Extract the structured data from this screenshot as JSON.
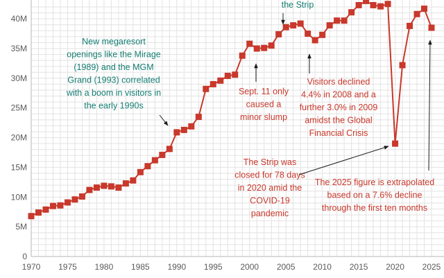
{
  "colors": {
    "series": "#c8382b",
    "annotation_teal": "#157e73",
    "annotation_red": "#c8382b",
    "grid": "#e2e2e2",
    "tick_text": "#5a5a5a"
  },
  "chart_data": {
    "type": "line",
    "title": "",
    "xlabel": "",
    "ylabel": "",
    "xlim": [
      1970,
      2025
    ],
    "ylim": [
      0,
      42
    ],
    "grid": "horizontal and vertical",
    "x_ticks": [
      1970,
      1975,
      1980,
      1985,
      1990,
      1995,
      2000,
      2005,
      2010,
      2015,
      2020,
      2025
    ],
    "x_tick_labels": [
      "1970",
      "1975",
      "1980",
      "1985",
      "1990",
      "1995",
      "2000",
      "2005",
      "2010",
      "2015",
      "2020",
      "2025"
    ],
    "y_ticks": [
      0,
      5,
      10,
      15,
      20,
      25,
      30,
      35,
      40
    ],
    "y_tick_labels": [
      "0",
      "5M",
      "10M",
      "15M",
      "20M",
      "25M",
      "30M",
      "35M",
      "40M"
    ],
    "series": [
      {
        "marker": "square",
        "x": [
          1970,
          1971,
          1972,
          1973,
          1974,
          1975,
          1976,
          1977,
          1978,
          1979,
          1980,
          1981,
          1982,
          1983,
          1984,
          1985,
          1986,
          1987,
          1988,
          1989,
          1990,
          1991,
          1992,
          1993,
          1994,
          1995,
          1996,
          1997,
          1998,
          1999,
          2000,
          2001,
          2002,
          2003,
          2004,
          2005,
          2006,
          2007,
          2008,
          2009,
          2010,
          2011,
          2012,
          2013,
          2014,
          2015,
          2016,
          2017,
          2018,
          2019,
          2020,
          2021,
          2022,
          2023,
          2024,
          2025
        ],
        "values": [
          6.8,
          7.4,
          7.9,
          8.5,
          8.6,
          9.1,
          9.6,
          10.1,
          11.2,
          11.6,
          11.9,
          11.8,
          11.6,
          12.3,
          12.8,
          14.2,
          15.2,
          16.2,
          17.1,
          18.1,
          20.9,
          21.3,
          21.9,
          23.5,
          28.2,
          29.0,
          29.6,
          30.4,
          30.6,
          33.8,
          35.8,
          35.0,
          35.1,
          35.5,
          37.4,
          38.6,
          38.9,
          39.2,
          37.5,
          36.4,
          37.3,
          38.9,
          39.7,
          39.7,
          41.1,
          42.3,
          43.0,
          42.3,
          42.1,
          42.5,
          19.0,
          32.2,
          38.8,
          40.8,
          41.7,
          38.5
        ]
      }
    ],
    "annotations": [
      {
        "id": "megaresort",
        "color": "teal",
        "lines": [
          "New megaresort",
          "openings like the Mirage",
          "(1989) and the MGM",
          "Grand (1993) correlated",
          "with a boom in visitors in",
          "the early 1990s"
        ]
      },
      {
        "id": "strip-top",
        "color": "teal",
        "lines": [
          "the Strip"
        ]
      },
      {
        "id": "sept11",
        "color": "red",
        "lines": [
          "Sept. 11 only",
          "caused a",
          "minor slump"
        ]
      },
      {
        "id": "financial-crisis",
        "color": "red",
        "lines": [
          "Visitors declined",
          "4.4% in 2008 and a",
          "further 3.0% in 2009",
          "amidst the Global",
          "Financial Crisis"
        ]
      },
      {
        "id": "covid",
        "color": "red",
        "lines": [
          "The Strip was",
          "closed for 78 days",
          "in 2020 amid the",
          "COVID-19",
          "pandemic"
        ]
      },
      {
        "id": "extrapolated",
        "color": "red",
        "lines": [
          "The 2025 figure is extrapolated",
          "based on a 7.6% decline",
          "through the first ten months"
        ]
      }
    ]
  }
}
